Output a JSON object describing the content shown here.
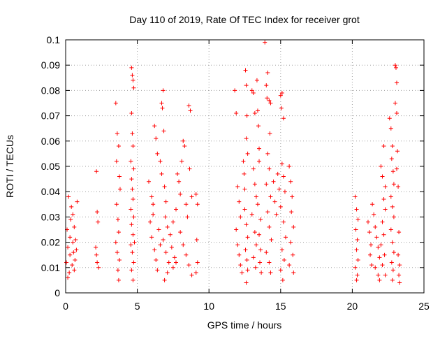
{
  "chart_data": {
    "type": "scatter",
    "title": "Day 110 of 2019, Rate Of TEC Index for receiver grot",
    "xlabel": "GPS time / hours",
    "ylabel": "ROTI / TECUs",
    "xlim": [
      0,
      25
    ],
    "ylim": [
      0,
      0.1
    ],
    "xticks": [
      0,
      5,
      10,
      15,
      20,
      25
    ],
    "xtick_labels": [
      "0",
      "5",
      "10",
      "15",
      "20",
      "25"
    ],
    "yticks": [
      0,
      0.01,
      0.02,
      0.03,
      0.04,
      0.05,
      0.06,
      0.07,
      0.08,
      0.09,
      0.1
    ],
    "ytick_labels": [
      "0",
      "0.01",
      "0.02",
      "0.03",
      "0.04",
      "0.05",
      "0.06",
      "0.07",
      "0.08",
      "0.09",
      "0.1"
    ],
    "grid": true,
    "legend": "none",
    "marker": "plus",
    "color": "#ff0000",
    "series": [
      {
        "points": [
          [
            0.05,
            0.012
          ],
          [
            0.1,
            0.025
          ],
          [
            0.15,
            0.018
          ],
          [
            0.2,
            0.038
          ],
          [
            0.25,
            0.008
          ],
          [
            0.3,
            0.015
          ],
          [
            0.35,
            0.029
          ],
          [
            0.4,
            0.034
          ],
          [
            0.45,
            0.011
          ],
          [
            0.5,
            0.02
          ],
          [
            0.55,
            0.016
          ],
          [
            0.6,
            0.026
          ],
          [
            0.65,
            0.013
          ],
          [
            0.7,
            0.021
          ],
          [
            0.75,
            0.017
          ],
          [
            0.8,
            0.036
          ],
          [
            0.15,
            0.006
          ],
          [
            0.3,
            0.022
          ],
          [
            0.5,
            0.031
          ],
          [
            0.6,
            0.009
          ],
          [
            2.15,
            0.048
          ],
          [
            2.2,
            0.032
          ],
          [
            2.25,
            0.028
          ],
          [
            2.1,
            0.018
          ],
          [
            2.2,
            0.012
          ],
          [
            2.3,
            0.01
          ],
          [
            2.15,
            0.015
          ],
          [
            3.5,
            0.075
          ],
          [
            3.6,
            0.063
          ],
          [
            3.7,
            0.058
          ],
          [
            3.75,
            0.046
          ],
          [
            3.55,
            0.035
          ],
          [
            3.65,
            0.029
          ],
          [
            3.7,
            0.024
          ],
          [
            3.5,
            0.02
          ],
          [
            3.6,
            0.016
          ],
          [
            3.75,
            0.013
          ],
          [
            3.65,
            0.009
          ],
          [
            3.7,
            0.005
          ],
          [
            3.8,
            0.041
          ],
          [
            3.55,
            0.052
          ],
          [
            4.6,
            0.089
          ],
          [
            4.65,
            0.086
          ],
          [
            4.7,
            0.084
          ],
          [
            4.75,
            0.081
          ],
          [
            4.6,
            0.071
          ],
          [
            4.65,
            0.063
          ],
          [
            4.7,
            0.058
          ],
          [
            4.55,
            0.052
          ],
          [
            4.75,
            0.049
          ],
          [
            4.6,
            0.045
          ],
          [
            4.65,
            0.041
          ],
          [
            4.7,
            0.037
          ],
          [
            4.55,
            0.033
          ],
          [
            4.75,
            0.03
          ],
          [
            4.6,
            0.027
          ],
          [
            4.7,
            0.023
          ],
          [
            4.55,
            0.019
          ],
          [
            4.65,
            0.016
          ],
          [
            4.75,
            0.012
          ],
          [
            4.6,
            0.009
          ],
          [
            4.7,
            0.005
          ],
          [
            4.8,
            0.02
          ],
          [
            5.8,
            0.044
          ],
          [
            6.0,
            0.038
          ],
          [
            6.2,
            0.066
          ],
          [
            6.3,
            0.061
          ],
          [
            6.4,
            0.055
          ],
          [
            6.1,
            0.035
          ],
          [
            5.9,
            0.028
          ],
          [
            6.0,
            0.022
          ],
          [
            6.2,
            0.017
          ],
          [
            6.3,
            0.013
          ],
          [
            6.4,
            0.009
          ],
          [
            6.1,
            0.031
          ],
          [
            6.5,
            0.025
          ],
          [
            6.6,
            0.019
          ],
          [
            6.7,
            0.075
          ],
          [
            6.8,
            0.08
          ],
          [
            6.75,
            0.073
          ],
          [
            6.85,
            0.064
          ],
          [
            6.6,
            0.052
          ],
          [
            6.7,
            0.047
          ],
          [
            6.9,
            0.042
          ],
          [
            7.0,
            0.036
          ],
          [
            6.95,
            0.03
          ],
          [
            7.1,
            0.026
          ],
          [
            6.8,
            0.021
          ],
          [
            7.0,
            0.016
          ],
          [
            7.2,
            0.012
          ],
          [
            7.1,
            0.008
          ],
          [
            6.9,
            0.005
          ],
          [
            7.3,
            0.023
          ],
          [
            7.4,
            0.018
          ],
          [
            7.5,
            0.028
          ],
          [
            7.6,
            0.014
          ],
          [
            7.7,
            0.033
          ],
          [
            7.8,
            0.047
          ],
          [
            7.9,
            0.044
          ],
          [
            8.0,
            0.039
          ],
          [
            8.1,
            0.052
          ],
          [
            8.2,
            0.06
          ],
          [
            8.3,
            0.058
          ],
          [
            8.4,
            0.035
          ],
          [
            8.5,
            0.03
          ],
          [
            8.6,
            0.074
          ],
          [
            8.7,
            0.072
          ],
          [
            8.65,
            0.049
          ],
          [
            8.8,
            0.038
          ],
          [
            8.0,
            0.024
          ],
          [
            8.2,
            0.019
          ],
          [
            8.4,
            0.015
          ],
          [
            8.6,
            0.011
          ],
          [
            8.8,
            0.007
          ],
          [
            7.5,
            0.01
          ],
          [
            7.7,
            0.012
          ],
          [
            9.1,
            0.039
          ],
          [
            9.2,
            0.035
          ],
          [
            9.15,
            0.021
          ],
          [
            9.2,
            0.012
          ],
          [
            9.1,
            0.008
          ],
          [
            11.8,
            0.08
          ],
          [
            11.9,
            0.071
          ],
          [
            12.0,
            0.042
          ],
          [
            12.1,
            0.036
          ],
          [
            12.2,
            0.03
          ],
          [
            11.9,
            0.025
          ],
          [
            12.0,
            0.019
          ],
          [
            12.1,
            0.015
          ],
          [
            12.2,
            0.011
          ],
          [
            12.3,
            0.008
          ],
          [
            12.4,
            0.052
          ],
          [
            12.45,
            0.047
          ],
          [
            12.5,
            0.041
          ],
          [
            12.55,
            0.088
          ],
          [
            12.6,
            0.082
          ],
          [
            12.65,
            0.07
          ],
          [
            12.6,
            0.061
          ],
          [
            12.7,
            0.055
          ],
          [
            12.5,
            0.033
          ],
          [
            12.6,
            0.027
          ],
          [
            12.7,
            0.022
          ],
          [
            12.55,
            0.017
          ],
          [
            12.65,
            0.013
          ],
          [
            12.7,
            0.009
          ],
          [
            12.6,
            0.004
          ],
          [
            13.0,
            0.08
          ],
          [
            13.1,
            0.079
          ],
          [
            13.2,
            0.071
          ],
          [
            13.1,
            0.049
          ],
          [
            13.2,
            0.043
          ],
          [
            13.3,
            0.038
          ],
          [
            13.0,
            0.031
          ],
          [
            13.2,
            0.024
          ],
          [
            13.3,
            0.019
          ],
          [
            13.1,
            0.014
          ],
          [
            13.25,
            0.01
          ],
          [
            13.35,
            0.084
          ],
          [
            13.4,
            0.072
          ],
          [
            13.45,
            0.066
          ],
          [
            13.5,
            0.057
          ],
          [
            13.5,
            0.052
          ],
          [
            13.4,
            0.035
          ],
          [
            13.6,
            0.029
          ],
          [
            13.5,
            0.023
          ],
          [
            13.6,
            0.017
          ],
          [
            13.55,
            0.012
          ],
          [
            13.65,
            0.008
          ],
          [
            13.9,
            0.099
          ],
          [
            14.0,
            0.082
          ],
          [
            14.05,
            0.077
          ],
          [
            14.1,
            0.087
          ],
          [
            14.2,
            0.076
          ],
          [
            14.3,
            0.075
          ],
          [
            14.25,
            0.063
          ],
          [
            14.1,
            0.055
          ],
          [
            14.2,
            0.049
          ],
          [
            14.0,
            0.043
          ],
          [
            14.3,
            0.038
          ],
          [
            14.1,
            0.032
          ],
          [
            14.2,
            0.026
          ],
          [
            14.35,
            0.021
          ],
          [
            14.0,
            0.016
          ],
          [
            14.2,
            0.012
          ],
          [
            14.3,
            0.008
          ],
          [
            14.5,
            0.044
          ],
          [
            14.6,
            0.036
          ],
          [
            14.7,
            0.031
          ],
          [
            14.8,
            0.047
          ],
          [
            14.9,
            0.041
          ],
          [
            15.0,
            0.078
          ],
          [
            15.05,
            0.073
          ],
          [
            15.1,
            0.079
          ],
          [
            15.2,
            0.069
          ],
          [
            15.1,
            0.051
          ],
          [
            15.2,
            0.046
          ],
          [
            15.3,
            0.04
          ],
          [
            15.0,
            0.034
          ],
          [
            15.2,
            0.028
          ],
          [
            15.35,
            0.022
          ],
          [
            15.1,
            0.017
          ],
          [
            15.25,
            0.013
          ],
          [
            15.0,
            0.009
          ],
          [
            15.15,
            0.005
          ],
          [
            15.6,
            0.05
          ],
          [
            15.7,
            0.044
          ],
          [
            15.8,
            0.038
          ],
          [
            15.75,
            0.032
          ],
          [
            15.9,
            0.026
          ],
          [
            15.7,
            0.02
          ],
          [
            15.85,
            0.015
          ],
          [
            15.6,
            0.011
          ],
          [
            15.9,
            0.008
          ],
          [
            20.2,
            0.038
          ],
          [
            20.3,
            0.033
          ],
          [
            20.4,
            0.029
          ],
          [
            20.25,
            0.025
          ],
          [
            20.35,
            0.021
          ],
          [
            20.3,
            0.017
          ],
          [
            20.4,
            0.013
          ],
          [
            20.2,
            0.01
          ],
          [
            20.35,
            0.007
          ],
          [
            20.3,
            0.005
          ],
          [
            21.1,
            0.028
          ],
          [
            21.2,
            0.024
          ],
          [
            21.3,
            0.019
          ],
          [
            21.25,
            0.015
          ],
          [
            21.35,
            0.011
          ],
          [
            21.4,
            0.035
          ],
          [
            21.5,
            0.031
          ],
          [
            21.6,
            0.026
          ],
          [
            21.7,
            0.022
          ],
          [
            21.8,
            0.018
          ],
          [
            21.9,
            0.014
          ],
          [
            21.6,
            0.01
          ],
          [
            21.8,
            0.007
          ],
          [
            21.9,
            0.005
          ],
          [
            22.0,
            0.05
          ],
          [
            22.1,
            0.046
          ],
          [
            22.2,
            0.058
          ],
          [
            22.3,
            0.042
          ],
          [
            22.2,
            0.037
          ],
          [
            22.3,
            0.033
          ],
          [
            22.1,
            0.028
          ],
          [
            22.2,
            0.023
          ],
          [
            22.0,
            0.019
          ],
          [
            22.25,
            0.015
          ],
          [
            22.1,
            0.011
          ],
          [
            22.3,
            0.007
          ],
          [
            22.6,
            0.069
          ],
          [
            22.7,
            0.065
          ],
          [
            22.8,
            0.058
          ],
          [
            22.75,
            0.053
          ],
          [
            22.85,
            0.048
          ],
          [
            22.9,
            0.043
          ],
          [
            22.7,
            0.038
          ],
          [
            22.8,
            0.034
          ],
          [
            22.9,
            0.03
          ],
          [
            22.7,
            0.025
          ],
          [
            22.8,
            0.02
          ],
          [
            22.9,
            0.016
          ],
          [
            22.75,
            0.012
          ],
          [
            22.85,
            0.009
          ],
          [
            22.8,
            0.005
          ],
          [
            23.0,
            0.09
          ],
          [
            23.05,
            0.089
          ],
          [
            23.1,
            0.083
          ],
          [
            23.0,
            0.075
          ],
          [
            23.1,
            0.071
          ],
          [
            23.15,
            0.056
          ],
          [
            23.1,
            0.049
          ],
          [
            23.2,
            0.042
          ],
          [
            23.25,
            0.024
          ],
          [
            23.2,
            0.015
          ],
          [
            23.3,
            0.011
          ],
          [
            23.25,
            0.007
          ],
          [
            23.3,
            0.004
          ]
        ]
      }
    ]
  }
}
